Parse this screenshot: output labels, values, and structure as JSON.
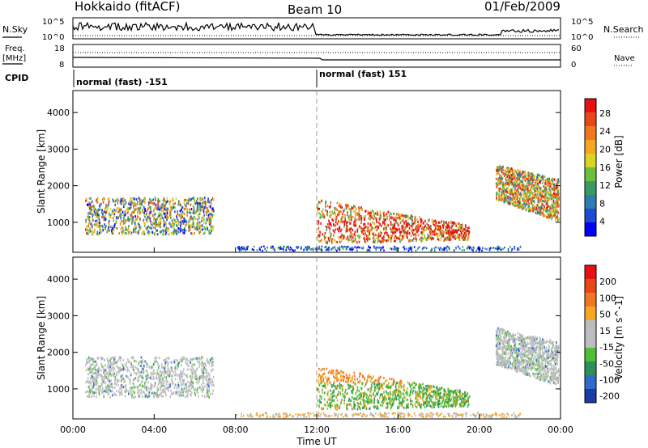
{
  "header": {
    "site": "Hokkaido (fitACF)",
    "beam": "Beam 10",
    "date": "01/Feb/2009"
  },
  "panels": {
    "nsky": {
      "label": "N.Sky",
      "right_label": "N.Search",
      "ticks_left": [
        "10^5",
        "10^0"
      ],
      "ticks_right": [
        "10^5",
        "10^0"
      ]
    },
    "freq": {
      "label_top": "Freq.",
      "label_unit": "[MHz]",
      "ticks_left": [
        "18",
        "8"
      ],
      "right_label": "Nave",
      "ticks_right": [
        "60",
        "0"
      ]
    },
    "cpid": {
      "label": "CPID",
      "modes": [
        "normal (fast) -151",
        "normal (fast) 151"
      ]
    }
  },
  "chart_data": [
    {
      "type": "heatmap",
      "title": "",
      "xlabel": "Time UT",
      "ylabel": "Slant Range [km]",
      "x_ticks": [
        "00:00",
        "04:00",
        "08:00",
        "12:00",
        "16:00",
        "20:00",
        "00:00"
      ],
      "y_ticks": [
        "1000",
        "2000",
        "3000",
        "4000"
      ],
      "xlim": [
        0,
        24
      ],
      "ylim": [
        180,
        4600
      ],
      "colorbar": {
        "label": "Power [dB]",
        "ticks": [
          "4",
          "8",
          "12",
          "16",
          "20",
          "24",
          "28"
        ],
        "colors": [
          "#0000ff",
          "#1e4bd2",
          "#2e7db0",
          "#3a9a63",
          "#6fbf3c",
          "#d7d422",
          "#f5a623",
          "#f07820",
          "#e84818",
          "#e81010"
        ]
      },
      "echo_regions": [
        {
          "t0": 0.6,
          "t1": 6.9,
          "r0": 700,
          "r1": 1700,
          "level": 0.45
        },
        {
          "t0": 12.0,
          "t1": 19.5,
          "r0": 450,
          "r1": 1650,
          "level": 0.7
        },
        {
          "t0": 20.8,
          "t1": 23.9,
          "r0": 1050,
          "r1": 2600,
          "level": 0.6
        }
      ]
    },
    {
      "type": "heatmap",
      "title": "",
      "xlabel": "Time UT",
      "ylabel": "Slant Range [km]",
      "x_ticks": [
        "00:00",
        "04:00",
        "08:00",
        "12:00",
        "16:00",
        "20:00",
        "00:00"
      ],
      "y_ticks": [
        "1000",
        "2000",
        "3000",
        "4000"
      ],
      "xlim": [
        0,
        24
      ],
      "ylim": [
        180,
        4600
      ],
      "colorbar": {
        "label": "Velocity [m s^-1]",
        "ticks": [
          "200",
          "100",
          "50",
          "15",
          "-15",
          "-50",
          "-100",
          "-200"
        ],
        "colors": [
          "#1a3aaa",
          "#2e6cc8",
          "#2f8f5a",
          "#4fbf3a",
          "#bdbdbd",
          "#bdbdbd",
          "#f5a623",
          "#f07820",
          "#e84818",
          "#e81010"
        ]
      },
      "echo_regions": [
        {
          "t0": 0.6,
          "t1": 6.9,
          "r0": 800,
          "r1": 1900,
          "velocity": "near-zero"
        },
        {
          "t0": 12.0,
          "t1": 19.5,
          "r0": 450,
          "r1": 1650,
          "velocity": "negative"
        },
        {
          "t0": 20.8,
          "t1": 23.9,
          "r0": 1100,
          "r1": 2700,
          "velocity": "near-zero"
        }
      ]
    }
  ]
}
